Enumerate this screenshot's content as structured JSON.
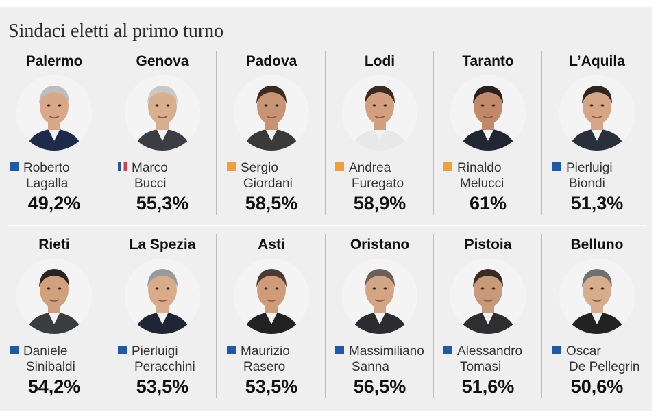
{
  "title": "Sindaci eletti al primo turno",
  "colors": {
    "blue": "#1f5aa6",
    "orange": "#f0a035",
    "flag": "#d04050"
  },
  "mayors": [
    {
      "city": "Palermo",
      "first": "Roberto",
      "last": "Lagalla",
      "pct": "49,2%",
      "color": "blue"
    },
    {
      "city": "Genova",
      "first": "Marco",
      "last": "Bucci",
      "pct": "55,3%",
      "color": "flag"
    },
    {
      "city": "Padova",
      "first": "Sergio",
      "last": "Giordani",
      "pct": "58,5%",
      "color": "orange"
    },
    {
      "city": "Lodi",
      "first": "Andrea",
      "last": "Furegato",
      "pct": "58,9%",
      "color": "orange"
    },
    {
      "city": "Taranto",
      "first": "Rinaldo",
      "last": "Melucci",
      "pct": "61%",
      "color": "orange"
    },
    {
      "city": "L’Aquila",
      "first": "Pierluigi",
      "last": "Biondi",
      "pct": "51,3%",
      "color": "blue"
    },
    {
      "city": "Rieti",
      "first": "Daniele",
      "last": "Sinibaldi",
      "pct": "54,2%",
      "color": "blue"
    },
    {
      "city": "La Spezia",
      "first": "Pierluigi",
      "last": "Peracchini",
      "pct": "53,5%",
      "color": "blue"
    },
    {
      "city": "Asti",
      "first": "Maurizio",
      "last": "Rasero",
      "pct": "53,5%",
      "color": "blue"
    },
    {
      "city": "Oristano",
      "first": "Massimiliano",
      "last": "Sanna",
      "pct": "56,5%",
      "color": "blue"
    },
    {
      "city": "Pistoia",
      "first": "Alessandro",
      "last": "Tomasi",
      "pct": "51,6%",
      "color": "blue"
    },
    {
      "city": "Belluno",
      "first": "Oscar",
      "last": "De Pellegrin",
      "pct": "50,6%",
      "color": "blue"
    }
  ]
}
